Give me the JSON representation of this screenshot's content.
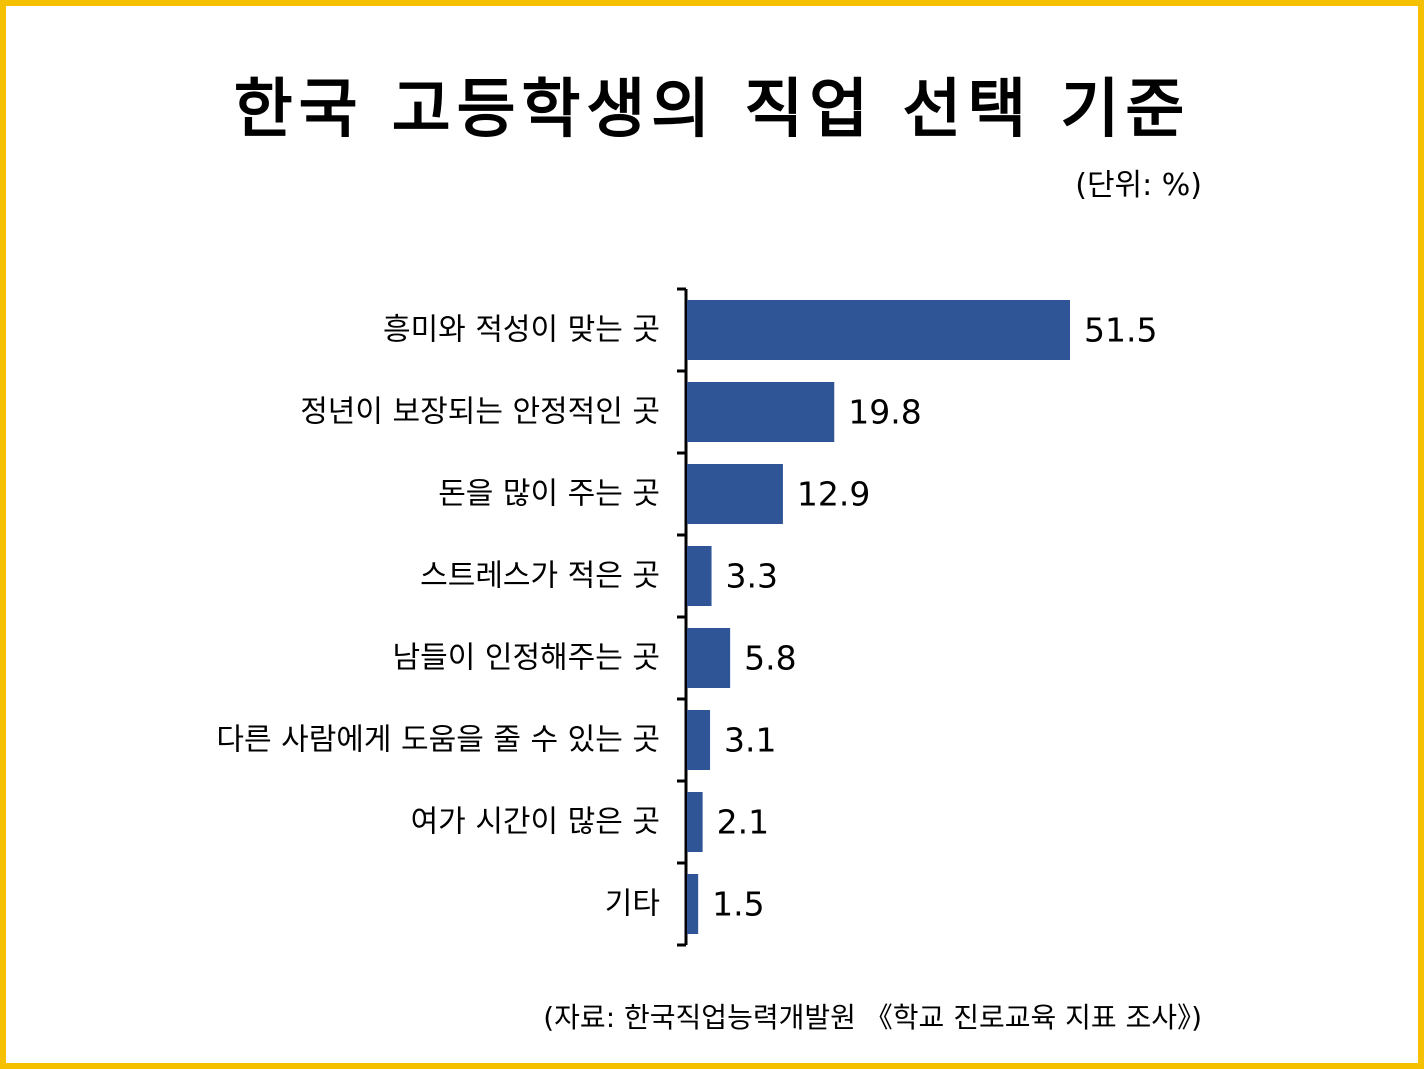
{
  "chart_data": {
    "type": "bar",
    "orientation": "horizontal",
    "title": "한국 고등학생의 직업 선택 기준",
    "unit": "(단위: %)",
    "source": "(자료: 한국직업능력개발원 《학교 진로교육 지표 조사》)",
    "categories": [
      "흥미와 적성이 맞는 곳",
      "정년이 보장되는 안정적인 곳",
      "돈을 많이 주는 곳",
      "스트레스가 적은 곳",
      "남들이 인정해주는 곳",
      "다른 사람에게 도움을 줄 수 있는 곳",
      "여가 시간이 많은 곳",
      "기타"
    ],
    "values": [
      51.5,
      19.8,
      12.9,
      3.3,
      5.8,
      3.1,
      2.1,
      1.5
    ],
    "value_labels": [
      "51.5",
      "19.8",
      "12.9",
      "3.3",
      "5.8",
      "3.1",
      "2.1",
      "1.5"
    ],
    "xlim": [
      0,
      51.5
    ],
    "bar_color": "#2f5597",
    "frame_color": "#f5c000",
    "grid": false,
    "legend": "none"
  }
}
